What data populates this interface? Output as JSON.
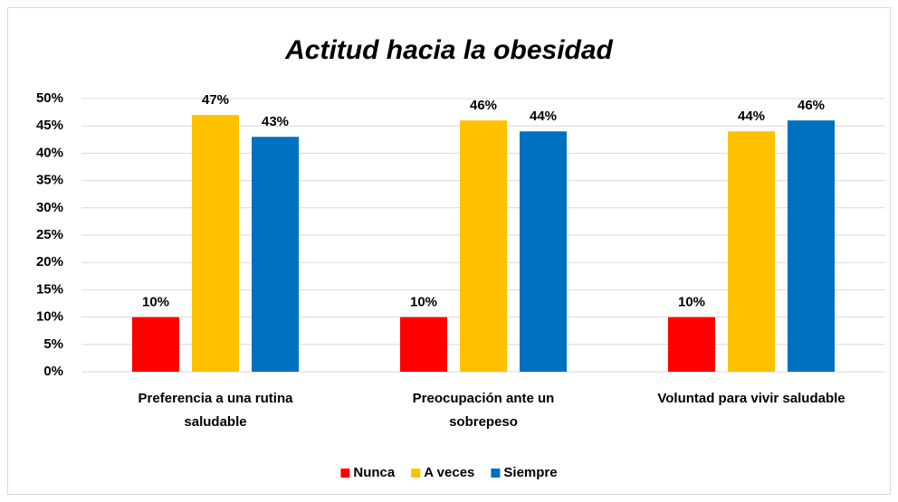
{
  "chart_data": {
    "type": "bar",
    "title": "Actitud hacia la obesidad",
    "categories": [
      "Preferencia a una rutina saludable",
      "Preocupación ante un sobrepeso",
      "Voluntad para vivir saludable"
    ],
    "series": [
      {
        "name": "Nunca",
        "color": "#ff0000",
        "values": [
          10,
          10,
          10
        ],
        "value_labels": [
          "10%",
          "10%",
          "10%"
        ]
      },
      {
        "name": "A veces",
        "color": "#ffc000",
        "values": [
          47,
          46,
          44
        ],
        "value_labels": [
          "47%",
          "46%",
          "44%"
        ]
      },
      {
        "name": "Siempre",
        "color": "#0070c0",
        "values": [
          43,
          44,
          46
        ],
        "value_labels": [
          "43%",
          "44%",
          "46%"
        ]
      }
    ],
    "ylim": [
      0,
      50
    ],
    "yticks": [
      {
        "value": 0,
        "label": "0%"
      },
      {
        "value": 5,
        "label": "5%"
      },
      {
        "value": 10,
        "label": "10%"
      },
      {
        "value": 15,
        "label": "15%"
      },
      {
        "value": 20,
        "label": "20%"
      },
      {
        "value": 25,
        "label": "25%"
      },
      {
        "value": 30,
        "label": "30%"
      },
      {
        "value": 35,
        "label": "35%"
      },
      {
        "value": 40,
        "label": "40%"
      },
      {
        "value": 45,
        "label": "45%"
      },
      {
        "value": 50,
        "label": "50%"
      }
    ],
    "grid": true,
    "legend": "bottom"
  }
}
